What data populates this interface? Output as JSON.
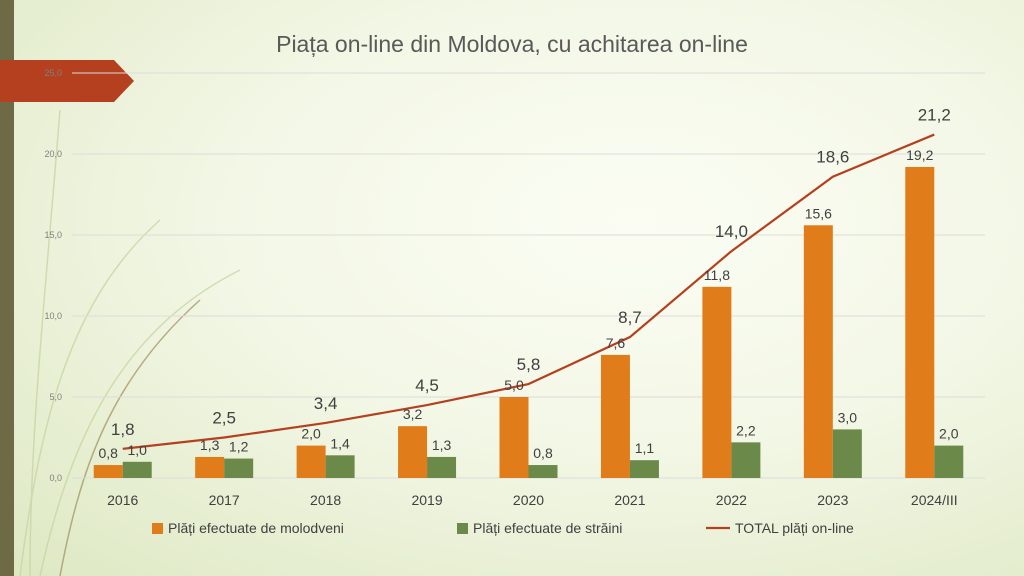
{
  "chart_data": {
    "type": "bar",
    "title": "Piața on-line din Moldova, cu achitarea on-line",
    "categories": [
      "2016",
      "2017",
      "2018",
      "2019",
      "2020",
      "2021",
      "2022",
      "2023",
      "2024/III"
    ],
    "series": [
      {
        "name": "Plăți efectuate de molodveni",
        "kind": "bar",
        "color": "#e07d1a",
        "values": [
          0.8,
          1.3,
          2.0,
          3.2,
          5.0,
          7.6,
          11.8,
          15.6,
          19.2
        ],
        "labels": [
          "0,8",
          "1,3",
          "2,0",
          "3,2",
          "5,0",
          "7,6",
          "11,8",
          "15,6",
          "19,2"
        ]
      },
      {
        "name": "Plăți efectuate de străini",
        "kind": "bar",
        "color": "#6b8a4a",
        "values": [
          1.0,
          1.2,
          1.4,
          1.3,
          0.8,
          1.1,
          2.2,
          3.0,
          2.0
        ],
        "labels": [
          "1,0",
          "1,2",
          "1,4",
          "1,3",
          "0,8",
          "1,1",
          "2,2",
          "3,0",
          "2,0"
        ]
      },
      {
        "name": "TOTAL plăți on-line",
        "kind": "line",
        "color": "#b5401f",
        "values": [
          1.8,
          2.5,
          3.4,
          4.5,
          5.8,
          8.7,
          14.0,
          18.6,
          21.2
        ],
        "labels": [
          "1,8",
          "2,5",
          "3,4",
          "4,5",
          "5,8",
          "8,7",
          "14,0",
          "18,6",
          "21,2"
        ]
      }
    ],
    "y_ticks": [
      "0,0",
      "5,0",
      "10,0",
      "15,0",
      "20,0",
      "25,0"
    ],
    "ylim": [
      0,
      25
    ],
    "grid": true,
    "legend_position": "bottom"
  },
  "colors": {
    "accent_flag": "#b5401f",
    "left_bar": "#6e6a45"
  }
}
